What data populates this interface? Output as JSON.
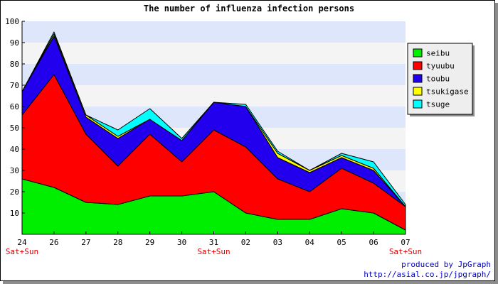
{
  "chart_data": {
    "type": "area",
    "stacked": true,
    "title": "The number of influenza infection persons",
    "categories": [
      "24",
      "26",
      "27",
      "28",
      "29",
      "30",
      "31",
      "02",
      "03",
      "04",
      "05",
      "06",
      "07"
    ],
    "category_sublabels": [
      "Sat+Sun",
      "",
      "",
      "",
      "",
      "",
      "Sat+Sun",
      "",
      "",
      "",
      "",
      "",
      "Sat+Sun"
    ],
    "ylim": [
      0,
      100
    ],
    "yticks": [
      10,
      20,
      30,
      40,
      50,
      60,
      70,
      80,
      90,
      100
    ],
    "series": [
      {
        "name": "seibu",
        "color": "#00ee00",
        "values": [
          26,
          22,
          15,
          14,
          18,
          18,
          20,
          10,
          7,
          7,
          12,
          10,
          2
        ]
      },
      {
        "name": "tyuubu",
        "color": "#ff0000",
        "values": [
          30,
          53,
          32,
          18,
          29,
          16,
          29,
          31,
          19,
          13,
          19,
          14,
          11
        ]
      },
      {
        "name": "toubu",
        "color": "#2200ee",
        "values": [
          11,
          18,
          8,
          13,
          7,
          10,
          13,
          19,
          10,
          9,
          5,
          6,
          0
        ]
      },
      {
        "name": "tsukigase",
        "color": "#ffff00",
        "values": [
          0,
          1,
          1,
          1,
          0,
          0,
          0,
          0,
          2,
          1,
          1,
          1,
          0
        ]
      },
      {
        "name": "tsuge",
        "color": "#00ffff",
        "values": [
          0,
          1,
          0,
          3,
          5,
          1,
          0,
          1,
          1,
          0,
          1,
          3,
          1
        ]
      }
    ],
    "grid": true,
    "legend_position": "top-right"
  },
  "credits": {
    "line1": "produced by JpGraph",
    "line2": "http://asial.co.jp/jpgraph/"
  },
  "colors": {
    "band_light": "#dde6fb",
    "band_grey": "#f4f4f4",
    "subtick_color": "#e00000",
    "credit_color": "#0000c0"
  }
}
